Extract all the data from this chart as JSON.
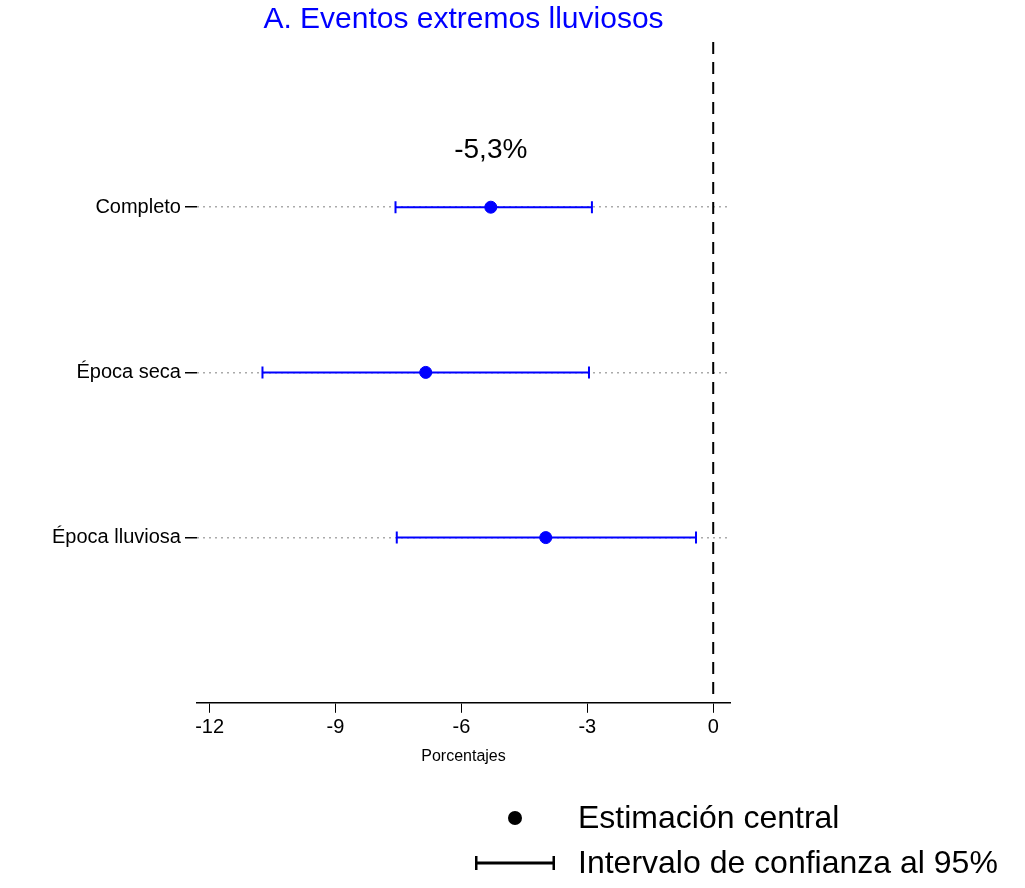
{
  "chart_data": {
    "type": "scatter",
    "title": "A. Eventos extremos lluviosos",
    "xlabel": "Porcentajes",
    "categories": [
      "Completo",
      "Época seca",
      "Época lluviosa"
    ],
    "series": [
      {
        "name": "Estimación central",
        "color": "#0000ff",
        "values": [
          -5.3,
          -6.85,
          -3.99
        ],
        "errors": [
          [
            -7.57,
            -2.89
          ],
          [
            -10.74,
            -2.96
          ],
          [
            -7.54,
            -0.41
          ]
        ]
      }
    ],
    "xlim": [
      -12.3,
      0.4
    ],
    "xticks": [
      -12,
      -9,
      -6,
      -3,
      0
    ],
    "ref_lines": [
      {
        "axis": "x",
        "value": 0,
        "color": "#000000",
        "line_style": "dashed"
      }
    ],
    "annotations": [
      {
        "text": "-5,3%",
        "x": -5.3,
        "y": "Completo"
      },
      "Intervalo de confianza al 95%"
    ],
    "grid": "y",
    "marker": "circle",
    "legend": "bottom right",
    "orientation": "horizontal"
  }
}
